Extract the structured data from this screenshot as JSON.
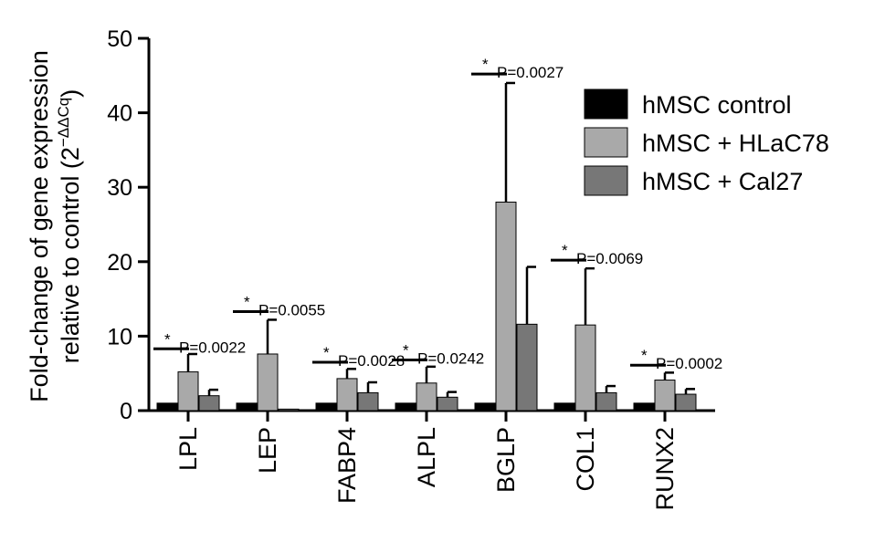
{
  "chart_data": {
    "type": "bar",
    "ylabel_line1": "Fold-change of gene expression",
    "ylabel_line2_text": "relative to control (2",
    "ylabel_superscript": "−ΔΔCq",
    "ylabel_close": ")",
    "ylim": [
      0,
      50
    ],
    "yticks": [
      0,
      10,
      20,
      30,
      40,
      50
    ],
    "categories": [
      "LPL",
      "LEP",
      "FABP4",
      "ALPL",
      "BGLP",
      "COL1",
      "RUNX2"
    ],
    "series": [
      {
        "name": "hMSC control",
        "color": "#000000",
        "values": [
          1,
          1,
          1,
          1,
          1,
          1,
          1
        ],
        "errors": [
          0,
          0,
          0,
          0,
          0,
          0,
          0
        ]
      },
      {
        "name": "hMSC + HLaC78",
        "color": "#a9a9a9",
        "values": [
          5.2,
          7.6,
          4.3,
          3.7,
          28.0,
          11.5,
          4.1
        ],
        "errors": [
          2.4,
          4.6,
          1.3,
          2.2,
          16.0,
          7.6,
          1.0
        ]
      },
      {
        "name": "hMSC + Cal27",
        "color": "#777777",
        "values": [
          2.0,
          0.2,
          2.4,
          1.8,
          11.6,
          2.4,
          2.2
        ],
        "errors": [
          0.8,
          0,
          1.4,
          0.7,
          7.7,
          0.9,
          0.7
        ]
      }
    ],
    "significance": [
      {
        "category": "LPL",
        "star": "*",
        "p": "P=0.0022",
        "bar_y": 8.3
      },
      {
        "category": "LEP",
        "star": "*",
        "p": "P=0.0055",
        "bar_y": 13.3
      },
      {
        "category": "FABP4",
        "star": "*",
        "p": "P=0.0028",
        "bar_y": 6.5
      },
      {
        "category": "ALPL",
        "star": "*",
        "p": "P=0.0242",
        "bar_y": 6.8
      },
      {
        "category": "BGLP",
        "star": "*",
        "p": "P=0.0027",
        "bar_y": 45.2
      },
      {
        "category": "COL1",
        "star": "*",
        "p": "P=0.0069",
        "bar_y": 20.2
      },
      {
        "category": "RUNX2",
        "star": "*",
        "p": "P=0.0002",
        "bar_y": 6.1
      }
    ],
    "legend_position": "top-right",
    "grid": false
  }
}
